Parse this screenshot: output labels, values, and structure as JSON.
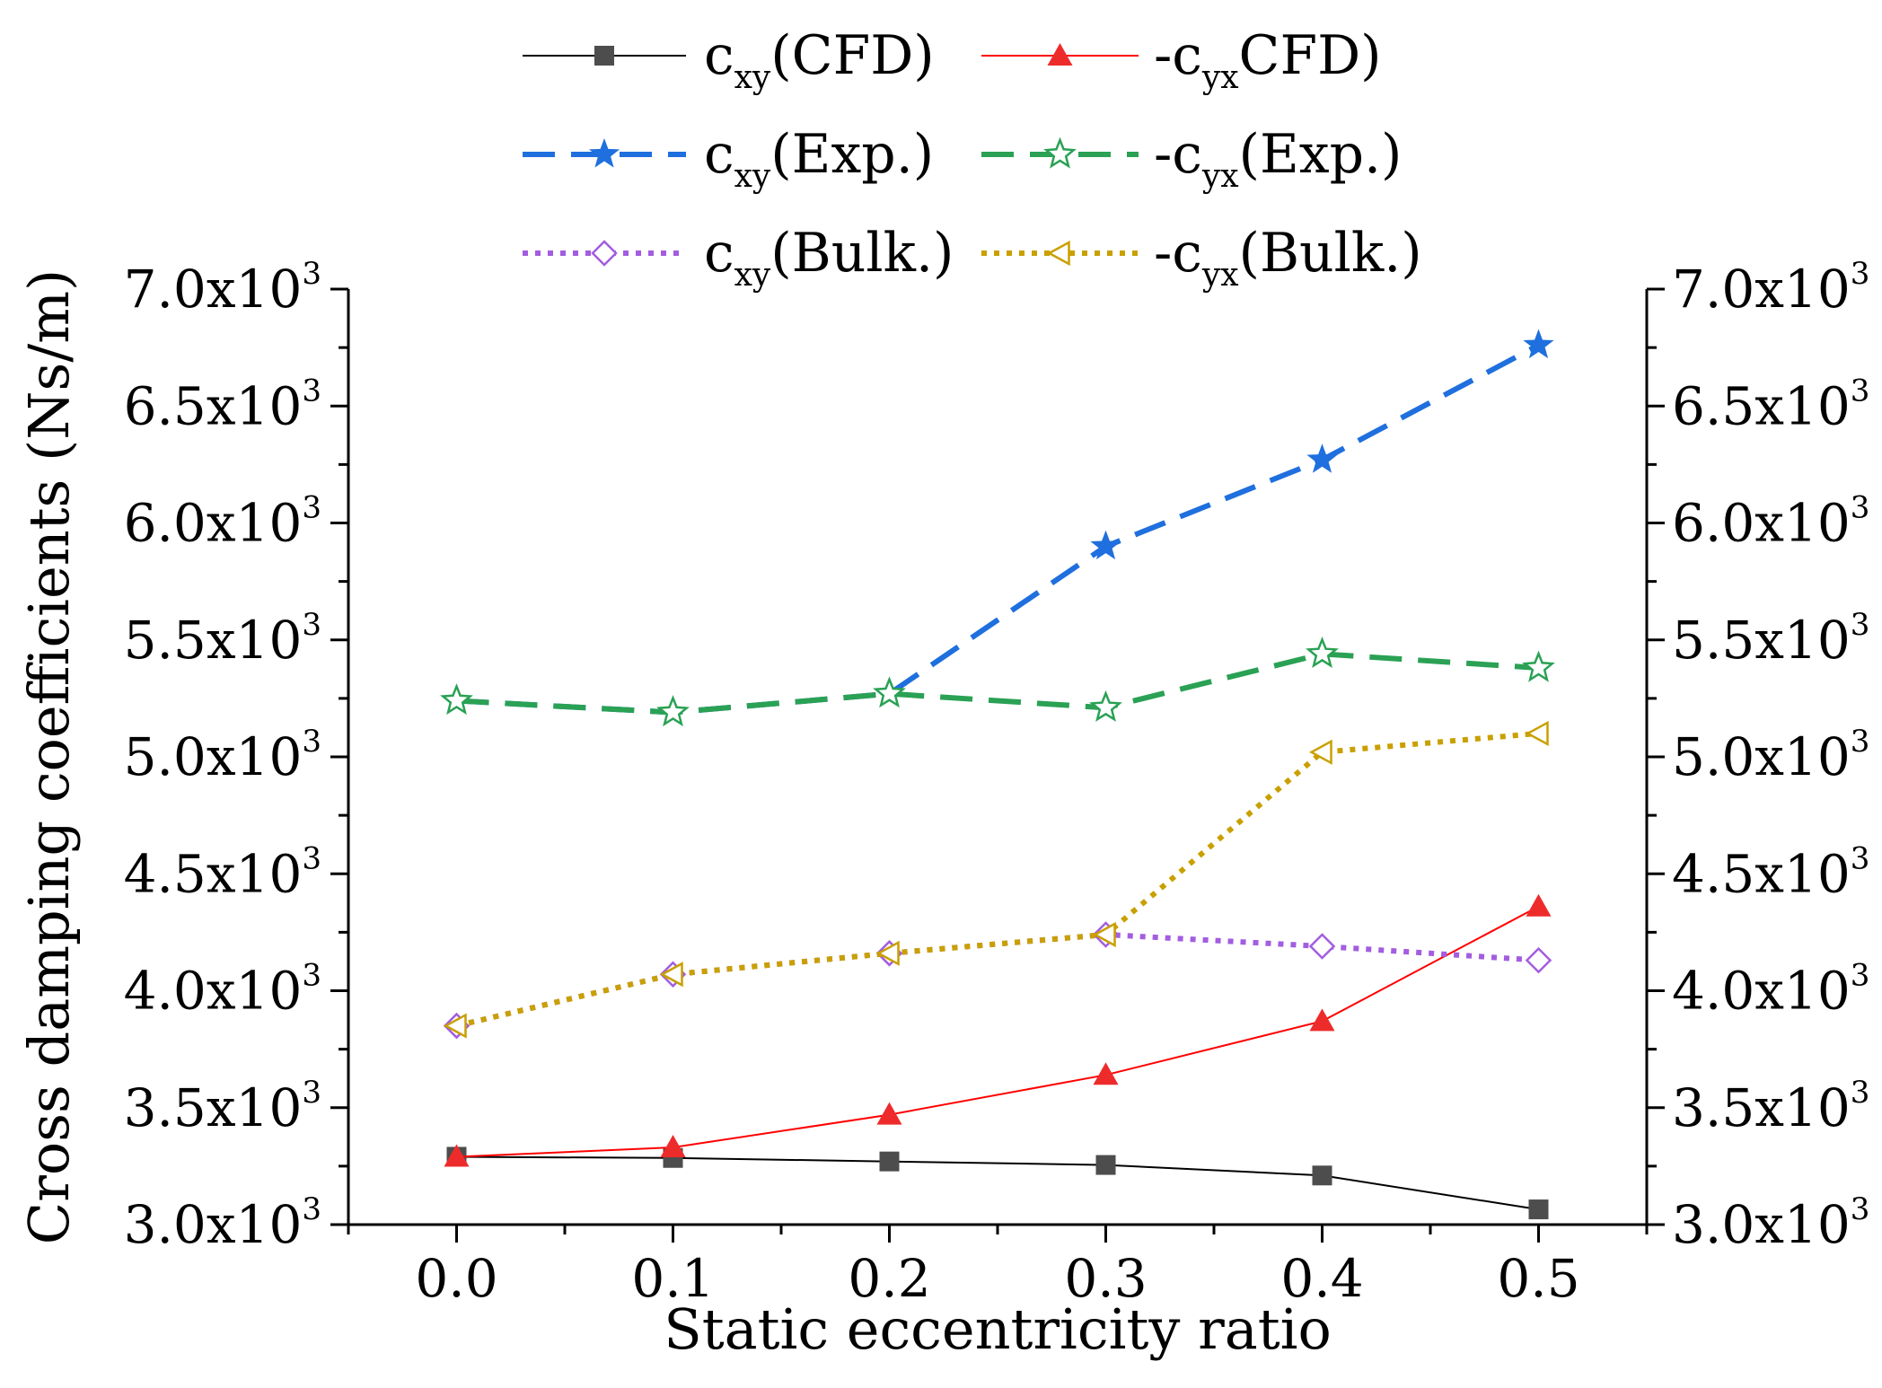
{
  "chart_data": {
    "type": "line",
    "x": [
      0.0,
      0.1,
      0.2,
      0.3,
      0.4,
      0.5
    ],
    "x_tick_labels": [
      "0.0",
      "0.1",
      "0.2",
      "0.3",
      "0.4",
      "0.5"
    ],
    "xlim": [
      -0.05,
      0.55
    ],
    "ylim": [
      3000,
      7000
    ],
    "y_ticks": [
      3000,
      3500,
      4000,
      4500,
      5000,
      5500,
      6000,
      6500,
      7000
    ],
    "y_tick_labels": [
      {
        "base": "3.0x10",
        "exp": "3"
      },
      {
        "base": "3.5x10",
        "exp": "3"
      },
      {
        "base": "4.0x10",
        "exp": "3"
      },
      {
        "base": "4.5x10",
        "exp": "3"
      },
      {
        "base": "5.0x10",
        "exp": "3"
      },
      {
        "base": "5.5x10",
        "exp": "3"
      },
      {
        "base": "6.0x10",
        "exp": "3"
      },
      {
        "base": "6.5x10",
        "exp": "3"
      },
      {
        "base": "7.0x10",
        "exp": "3"
      }
    ],
    "xlabel": "Static eccentricity ratio",
    "ylabel": "Cross damping coefficients (Ns/m)",
    "grid": false,
    "legend_position": "top",
    "series": [
      {
        "name": "cxy(CFD)",
        "label_main": "c",
        "label_sub": "xy",
        "label_tail": "(CFD)",
        "color": "#000000",
        "marker_color": "#4d4d4d",
        "marker": "square",
        "line": "solid",
        "values": [
          3290,
          3285,
          3270,
          3255,
          3210,
          3065
        ]
      },
      {
        "name": "-cyxCFD)",
        "label_main": "-c",
        "label_sub": "yx",
        "label_tail": "CFD)",
        "color": "#ff0000",
        "marker_color": "#ee2b2b",
        "marker": "triangle",
        "line": "solid",
        "values": [
          3290,
          3330,
          3470,
          3640,
          3870,
          4360
        ]
      },
      {
        "name": "cxy(Exp.)",
        "label_main": "c",
        "label_sub": "xy",
        "label_tail": "(Exp.)",
        "color": "#1f6fde",
        "marker_color": "#1f6fde",
        "marker": "star-filled",
        "line": "dash",
        "values": [
          5240,
          5190,
          5270,
          5900,
          6270,
          6760
        ]
      },
      {
        "name": "-cyx(Exp.)",
        "label_main": "-c",
        "label_sub": "yx",
        "label_tail": "(Exp.)",
        "color": "#2aa154",
        "marker_color": "#2aa154",
        "marker": "star-open",
        "line": "dash",
        "values": [
          5240,
          5190,
          5270,
          5210,
          5440,
          5380
        ]
      },
      {
        "name": "cxy(Bulk.)",
        "label_main": "c",
        "label_sub": "xy",
        "label_tail": "(Bulk.)",
        "color": "#a35de0",
        "marker_color": "#a35de0",
        "marker": "diamond-open",
        "line": "dot",
        "values": [
          3850,
          4070,
          4160,
          4240,
          4190,
          4130
        ]
      },
      {
        "name": "-cyx(Bulk.)",
        "label_main": "-c",
        "label_sub": "yx",
        "label_tail": "(Bulk.)",
        "color": "#c9a000",
        "marker_color": "#c9a000",
        "marker": "triangle-left-open",
        "line": "dot",
        "values": [
          3850,
          4070,
          4160,
          4240,
          5020,
          5100
        ]
      }
    ]
  }
}
